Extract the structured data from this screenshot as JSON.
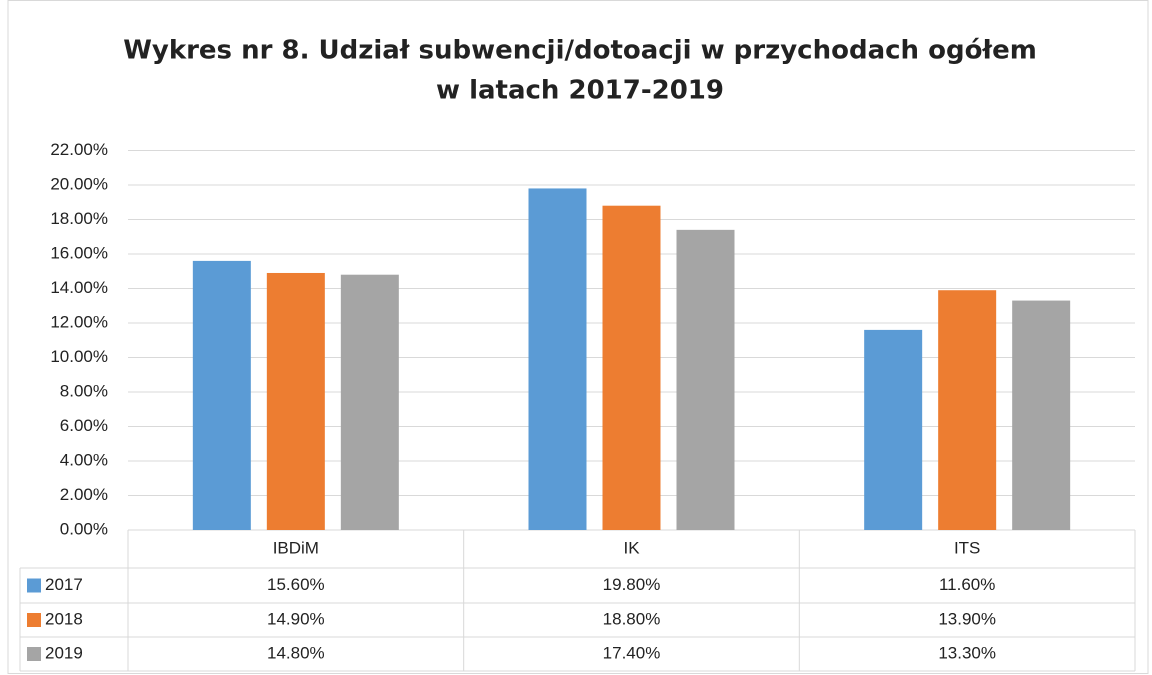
{
  "chart_data": {
    "type": "bar",
    "title": [
      "Wykres nr 8. Udział subwencji/dotoacji w przychodach ogółem",
      "w latach 2017-2019"
    ],
    "categories": [
      "IBDiM",
      "IK",
      "ITS"
    ],
    "series": [
      {
        "name": "2017",
        "color": "#5b9bd5",
        "values": [
          15.6,
          19.8,
          11.6
        ],
        "value_labels": [
          "15.60%",
          "19.80%",
          "11.60%"
        ]
      },
      {
        "name": "2018",
        "color": "#ed7d31",
        "values": [
          14.9,
          18.8,
          13.9
        ],
        "value_labels": [
          "14.90%",
          "18.80%",
          "13.90%"
        ]
      },
      {
        "name": "2019",
        "color": "#a5a5a5",
        "values": [
          14.8,
          17.4,
          13.3
        ],
        "value_labels": [
          "14.80%",
          "17.40%",
          "13.30%"
        ]
      }
    ],
    "ylim": [
      0,
      22
    ],
    "yticks": [
      {
        "value": 0,
        "label": "0.00%"
      },
      {
        "value": 2,
        "label": "2.00%"
      },
      {
        "value": 4,
        "label": "4.00%"
      },
      {
        "value": 6,
        "label": "6.00%"
      },
      {
        "value": 8,
        "label": "8.00%"
      },
      {
        "value": 10,
        "label": "10.00%"
      },
      {
        "value": 12,
        "label": "12.00%"
      },
      {
        "value": 14,
        "label": "14.00%"
      },
      {
        "value": 16,
        "label": "16.00%"
      },
      {
        "value": 18,
        "label": "18.00%"
      },
      {
        "value": 20,
        "label": "20.00%"
      },
      {
        "value": 22,
        "label": "22.00%"
      }
    ],
    "grid": true
  }
}
